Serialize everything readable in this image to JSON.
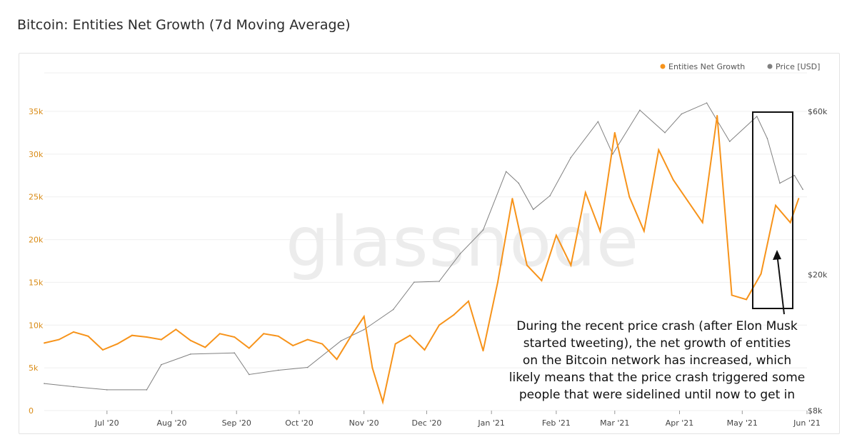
{
  "title": "Bitcoin: Entities Net Growth (7d Moving Average)",
  "watermark": "glassnode",
  "legend": [
    {
      "name": "Entities Net Growth",
      "color": "#f7931a"
    },
    {
      "name": "Price [USD]",
      "color": "#808080"
    }
  ],
  "annotation": {
    "lines": [
      "During the recent price crash (after Elon Musk",
      "started tweeting), the net growth of entities",
      "on the Bitcoin network has increased, which",
      "likely means that the price crash triggered some",
      "people that were sidelined until now to get in"
    ]
  },
  "chart_data": {
    "type": "line",
    "title": "Bitcoin: Entities Net Growth (7d Moving Average)",
    "x_range": [
      "2020-06-01",
      "2021-06-01"
    ],
    "x_ticks": [
      "Jul '20",
      "Aug '20",
      "Sep '20",
      "Oct '20",
      "Nov '20",
      "Dec '20",
      "Jan '21",
      "Feb '21",
      "Mar '21",
      "Apr '21",
      "May '21",
      "Jun '21"
    ],
    "y_left": {
      "ticks": [
        "0",
        "5k",
        "10k",
        "15k",
        "20k",
        "25k",
        "30k",
        "35k"
      ],
      "range": [
        0,
        35000
      ],
      "color": "#d98b16"
    },
    "y_right": {
      "ticks": [
        "$8k",
        "$20k",
        "$60k"
      ],
      "scale": "log",
      "range": [
        8000,
        60000
      ]
    },
    "grid": true,
    "legend_position": "top-right",
    "series": [
      {
        "name": "Entities Net Growth",
        "axis": "left",
        "color": "#f7931a",
        "points": [
          [
            "2020-06-01",
            7900
          ],
          [
            "2020-06-08",
            8300
          ],
          [
            "2020-06-15",
            9200
          ],
          [
            "2020-06-22",
            8700
          ],
          [
            "2020-06-29",
            7100
          ],
          [
            "2020-07-06",
            7800
          ],
          [
            "2020-07-13",
            8800
          ],
          [
            "2020-07-20",
            8600
          ],
          [
            "2020-07-27",
            8300
          ],
          [
            "2020-08-03",
            9500
          ],
          [
            "2020-08-10",
            8200
          ],
          [
            "2020-08-17",
            7400
          ],
          [
            "2020-08-24",
            9000
          ],
          [
            "2020-08-31",
            8600
          ],
          [
            "2020-09-07",
            7300
          ],
          [
            "2020-09-14",
            9000
          ],
          [
            "2020-09-21",
            8700
          ],
          [
            "2020-09-28",
            7600
          ],
          [
            "2020-10-05",
            8300
          ],
          [
            "2020-10-12",
            7800
          ],
          [
            "2020-10-19",
            6000
          ],
          [
            "2020-10-26",
            8800
          ],
          [
            "2020-11-01",
            11000
          ],
          [
            "2020-11-05",
            5000
          ],
          [
            "2020-11-10",
            1000
          ],
          [
            "2020-11-16",
            7800
          ],
          [
            "2020-11-23",
            8800
          ],
          [
            "2020-11-30",
            7100
          ],
          [
            "2020-12-07",
            10000
          ],
          [
            "2020-12-14",
            11200
          ],
          [
            "2020-12-21",
            12800
          ],
          [
            "2020-12-28",
            7000
          ],
          [
            "2021-01-04",
            15000
          ],
          [
            "2021-01-11",
            24800
          ],
          [
            "2021-01-18",
            17000
          ],
          [
            "2021-01-25",
            15200
          ],
          [
            "2021-02-01",
            20500
          ],
          [
            "2021-02-08",
            17000
          ],
          [
            "2021-02-15",
            25500
          ],
          [
            "2021-02-22",
            21000
          ],
          [
            "2021-03-01",
            32500
          ],
          [
            "2021-03-08",
            25000
          ],
          [
            "2021-03-15",
            21000
          ],
          [
            "2021-03-22",
            30500
          ],
          [
            "2021-03-29",
            27000
          ],
          [
            "2021-04-05",
            24500
          ],
          [
            "2021-04-12",
            22000
          ],
          [
            "2021-04-19",
            34500
          ],
          [
            "2021-04-26",
            13500
          ],
          [
            "2021-05-03",
            13000
          ],
          [
            "2021-05-10",
            16000
          ],
          [
            "2021-05-17",
            24000
          ],
          [
            "2021-05-24",
            22000
          ],
          [
            "2021-05-28",
            24800
          ]
        ]
      },
      {
        "name": "Price [USD]",
        "axis": "right",
        "color": "#808080",
        "points": [
          [
            "2020-06-01",
            9600
          ],
          [
            "2020-06-15",
            9400
          ],
          [
            "2020-07-01",
            9200
          ],
          [
            "2020-07-20",
            9200
          ],
          [
            "2020-07-27",
            10900
          ],
          [
            "2020-08-10",
            11700
          ],
          [
            "2020-08-31",
            11800
          ],
          [
            "2020-09-07",
            10200
          ],
          [
            "2020-09-21",
            10500
          ],
          [
            "2020-10-05",
            10700
          ],
          [
            "2020-10-21",
            12800
          ],
          [
            "2020-11-01",
            13800
          ],
          [
            "2020-11-15",
            15800
          ],
          [
            "2020-11-25",
            19000
          ],
          [
            "2020-12-07",
            19100
          ],
          [
            "2020-12-17",
            23000
          ],
          [
            "2020-12-28",
            27000
          ],
          [
            "2021-01-08",
            40000
          ],
          [
            "2021-01-14",
            37000
          ],
          [
            "2021-01-21",
            31000
          ],
          [
            "2021-01-29",
            34000
          ],
          [
            "2021-02-08",
            44000
          ],
          [
            "2021-02-21",
            56000
          ],
          [
            "2021-02-28",
            45000
          ],
          [
            "2021-03-13",
            60500
          ],
          [
            "2021-03-25",
            52000
          ],
          [
            "2021-04-02",
            59000
          ],
          [
            "2021-04-14",
            63500
          ],
          [
            "2021-04-25",
            49000
          ],
          [
            "2021-05-08",
            58000
          ],
          [
            "2021-05-13",
            50000
          ],
          [
            "2021-05-19",
            37000
          ],
          [
            "2021-05-26",
            39000
          ],
          [
            "2021-05-30",
            35500
          ]
        ]
      }
    ]
  }
}
